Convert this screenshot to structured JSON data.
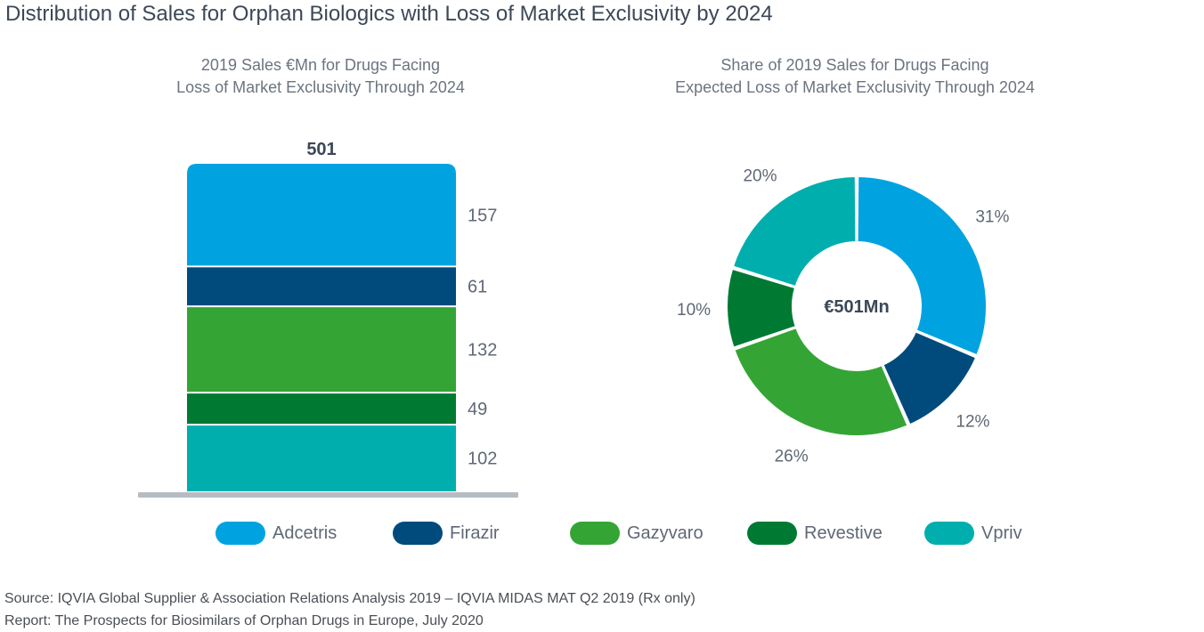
{
  "title": "Distribution of Sales for Orphan Biologics with Loss of Market Exclusivity by 2024",
  "chart_data": [
    {
      "type": "bar",
      "stacked": true,
      "title_lines": [
        "2019 Sales €Mn for Drugs Facing",
        "Loss of Market Exclusivity Through 2024"
      ],
      "total_label": "501",
      "series": [
        {
          "name": "Adcetris",
          "value": 157,
          "label": "157",
          "color": "#00a3e0"
        },
        {
          "name": "Firazir",
          "value": 61,
          "label": "61",
          "color": "#004b7c"
        },
        {
          "name": "Gazyvaro",
          "value": 132,
          "label": "132",
          "color": "#34a535"
        },
        {
          "name": "Revestive",
          "value": 49,
          "label": "49",
          "color": "#007a33"
        },
        {
          "name": "Vpriv",
          "value": 102,
          "label": "102",
          "color": "#00aeae"
        }
      ]
    },
    {
      "type": "pie",
      "donut": true,
      "title_lines": [
        "Share of 2019 Sales for Drugs Facing",
        "Expected Loss of Market Exclusivity Through 2024"
      ],
      "center_label": "€501Mn",
      "slices": [
        {
          "name": "Adcetris",
          "value": 31,
          "label": "31%",
          "color": "#00a3e0"
        },
        {
          "name": "Firazir",
          "value": 12,
          "label": "12%",
          "color": "#004b7c"
        },
        {
          "name": "Gazyvaro",
          "value": 26,
          "label": "26%",
          "color": "#34a535"
        },
        {
          "name": "Revestive",
          "value": 10,
          "label": "10%",
          "color": "#007a33"
        },
        {
          "name": "Vpriv",
          "value": 20,
          "label": "20%",
          "color": "#00aeae"
        }
      ]
    }
  ],
  "legend": [
    {
      "name": "Adcetris",
      "color": "#00a3e0"
    },
    {
      "name": "Firazir",
      "color": "#004b7c"
    },
    {
      "name": "Gazyvaro",
      "color": "#34a535"
    },
    {
      "name": "Revestive",
      "color": "#007a33"
    },
    {
      "name": "Vpriv",
      "color": "#00aeae"
    }
  ],
  "footer": {
    "source": "Source: IQVIA Global Supplier & Association Relations Analysis 2019 – IQVIA MIDAS MAT Q2 2019 (Rx only)",
    "report": "Report: The Prospects for Biosimilars of Orphan Drugs in Europe, July 2020"
  }
}
